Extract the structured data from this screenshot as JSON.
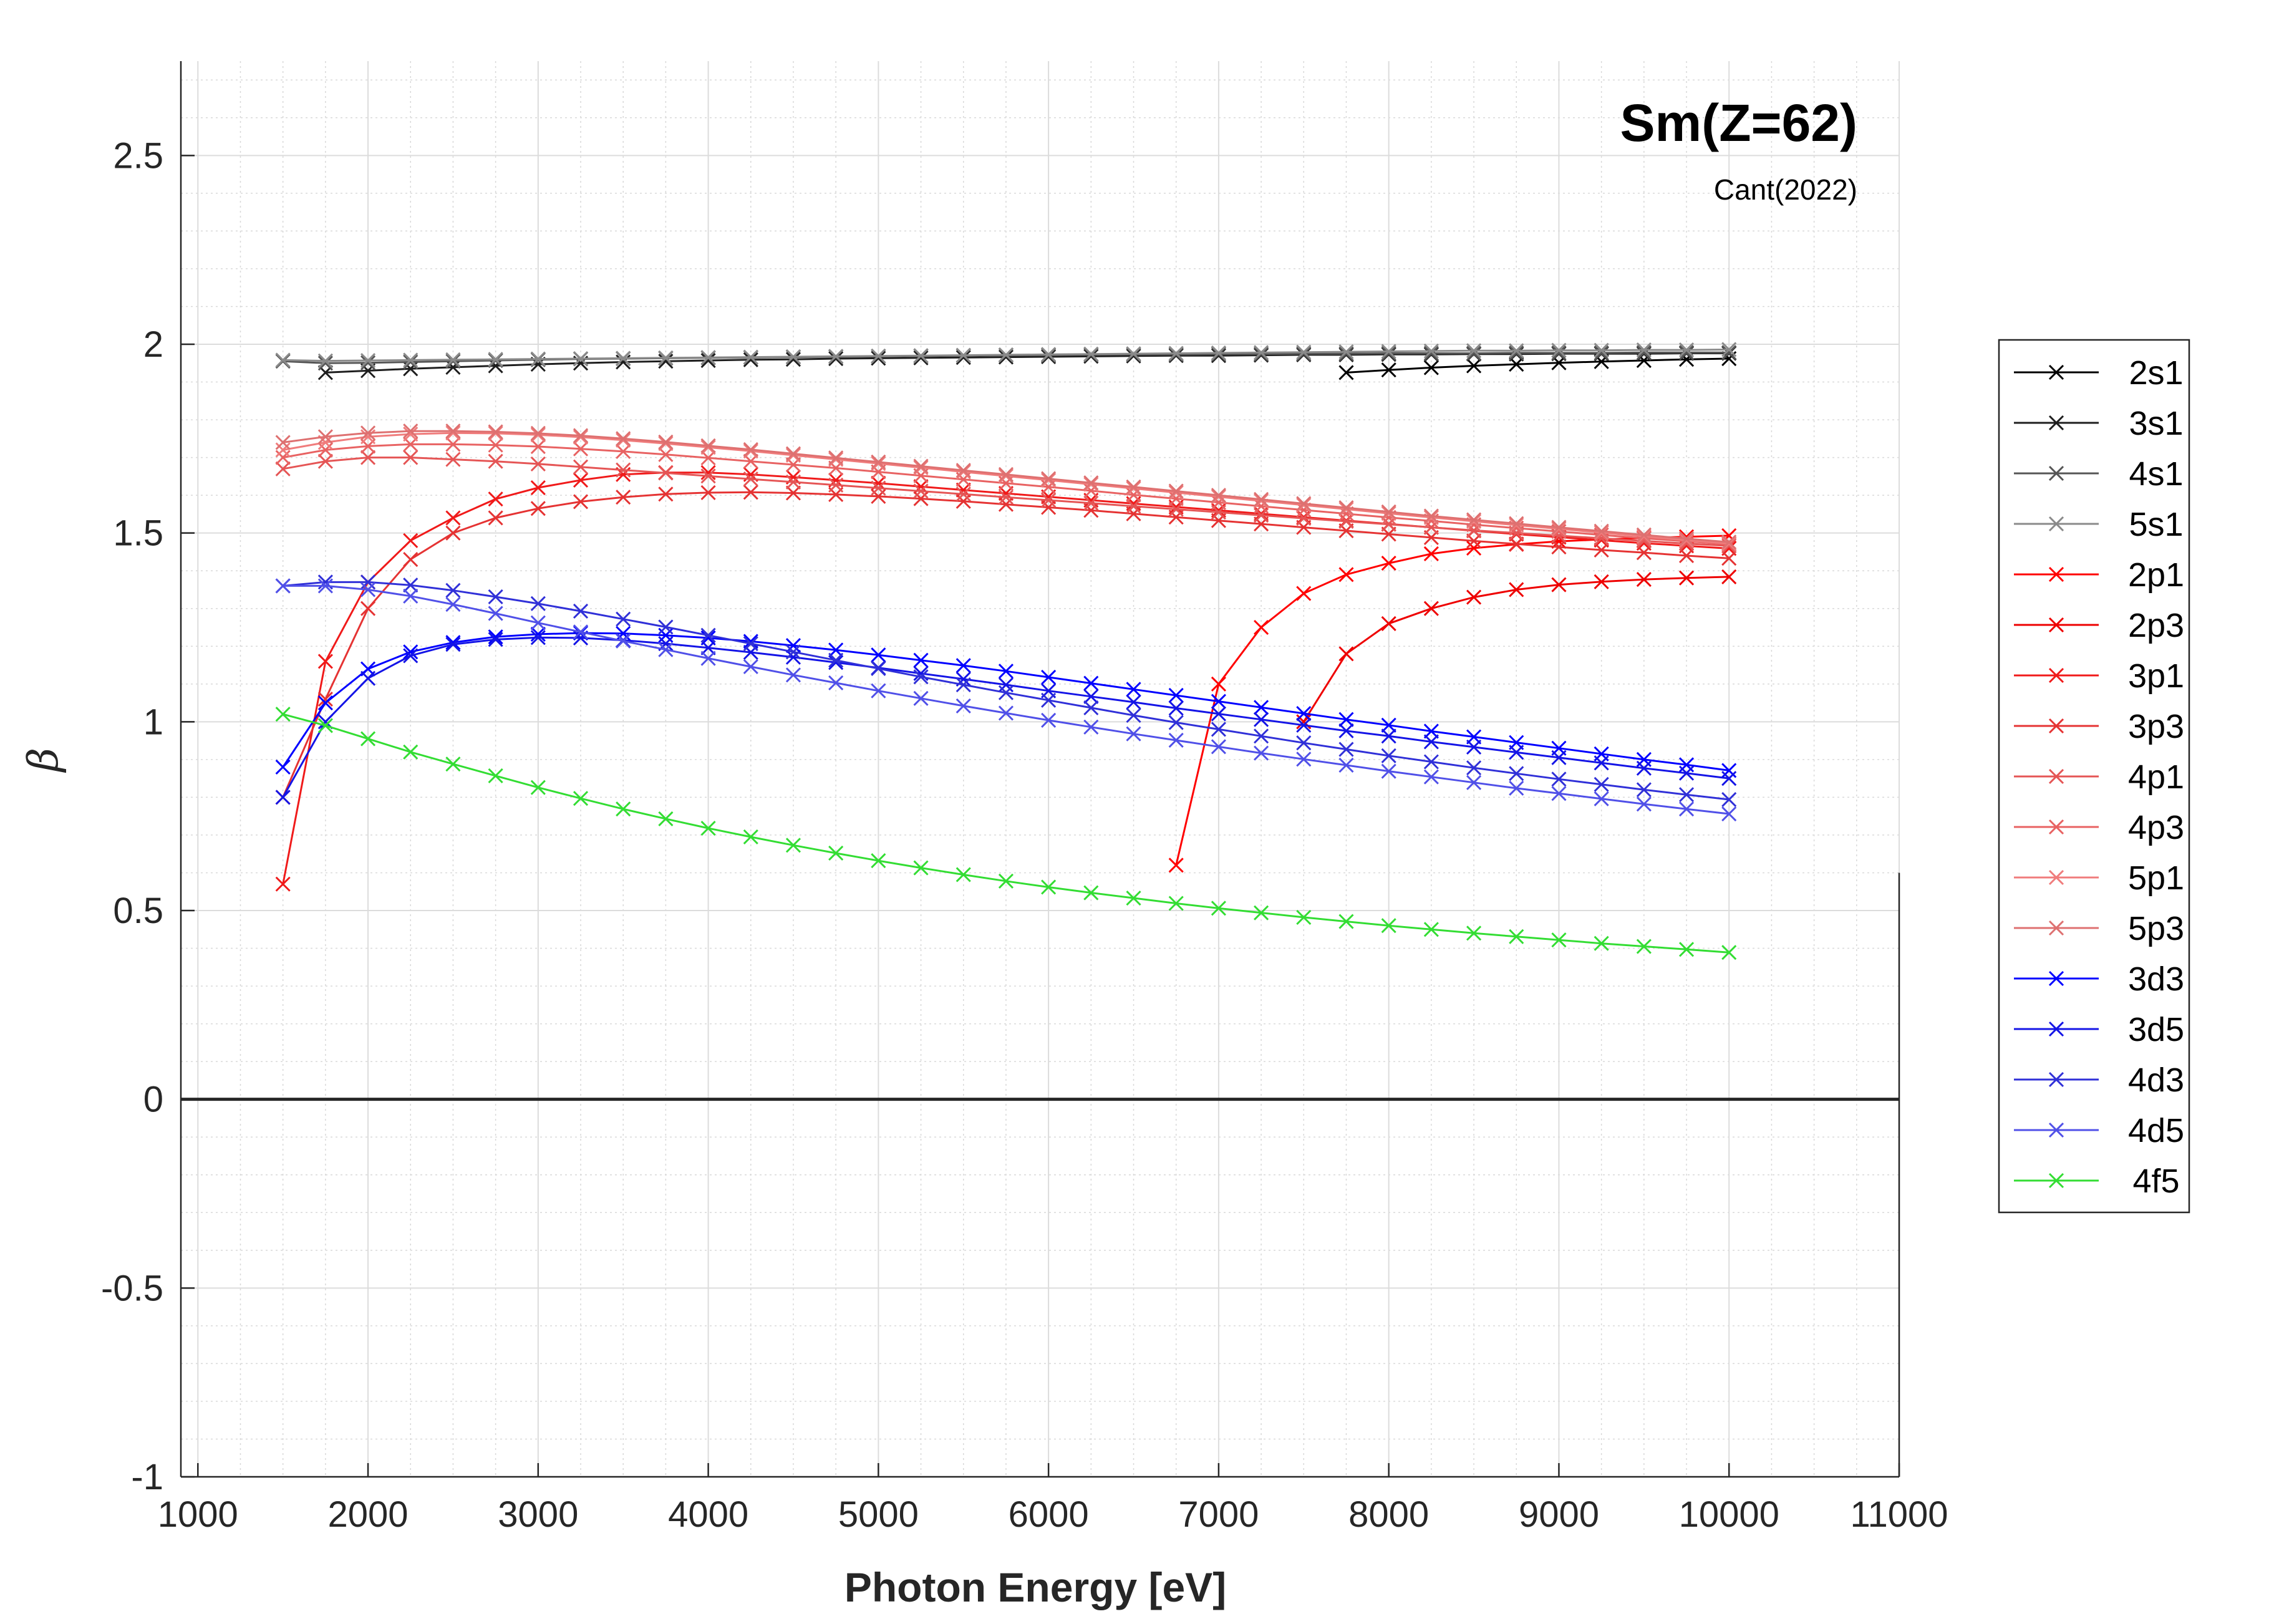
{
  "chart_data": {
    "type": "line",
    "title": "Sm(Z=62)",
    "subtitle": "Cant(2022)",
    "xlabel": "Photon Energy [eV]",
    "ylabel": "β",
    "xlim": [
      900,
      11000
    ],
    "ylim": [
      -1,
      2.75
    ],
    "xticks": [
      "1000",
      "2000",
      "3000",
      "4000",
      "5000",
      "6000",
      "7000",
      "8000",
      "9000",
      "10000",
      "11000"
    ],
    "yticks": [
      "-1",
      "-0.5",
      "0",
      "0.5",
      "1",
      "1.5",
      "2",
      "2.5"
    ],
    "grid": true,
    "minor_grid": true,
    "legend_position": "right",
    "zero_line": true,
    "series": [
      {
        "name": "2s1",
        "color": "#000000",
        "x": [
          7750,
          8000,
          8250,
          8500,
          8750,
          9000,
          9250,
          9500,
          9750,
          10000
        ],
        "y": [
          1.925,
          1.932,
          1.938,
          1.943,
          1.947,
          1.951,
          1.954,
          1.957,
          1.96,
          1.962
        ]
      },
      {
        "name": "3s1",
        "color": "#1e1e1e",
        "x": [
          1750,
          2000,
          2250,
          2500,
          2750,
          3000,
          3250,
          3500,
          3750,
          4000,
          4250,
          4500,
          4750,
          5000,
          5250,
          5500,
          5750,
          6000,
          6250,
          6500,
          6750,
          7000,
          7250,
          7500,
          7750,
          8000,
          8250,
          8500,
          8750,
          9000,
          9250,
          9500,
          9750,
          10000
        ],
        "y": [
          1.925,
          1.93,
          1.935,
          1.939,
          1.943,
          1.947,
          1.95,
          1.953,
          1.955,
          1.957,
          1.959,
          1.96,
          1.962,
          1.963,
          1.964,
          1.965,
          1.966,
          1.967,
          1.968,
          1.969,
          1.97,
          1.97,
          1.971,
          1.972,
          1.972,
          1.973,
          1.973,
          1.974,
          1.974,
          1.975,
          1.975,
          1.975,
          1.976,
          1.976
        ]
      },
      {
        "name": "4s1",
        "color": "#555555",
        "x": [
          1500,
          1750,
          2000,
          2250,
          2500,
          2750,
          3000,
          3250,
          3500,
          3750,
          4000,
          4250,
          4500,
          4750,
          5000,
          5250,
          5500,
          5750,
          6000,
          6250,
          6500,
          6750,
          7000,
          7250,
          7500,
          7750,
          8000,
          8250,
          8500,
          8750,
          9000,
          9250,
          9500,
          9750,
          10000
        ],
        "y": [
          1.955,
          1.95,
          1.951,
          1.953,
          1.955,
          1.957,
          1.959,
          1.961,
          1.962,
          1.963,
          1.964,
          1.965,
          1.966,
          1.967,
          1.968,
          1.969,
          1.97,
          1.971,
          1.971,
          1.972,
          1.973,
          1.973,
          1.974,
          1.974,
          1.975,
          1.975,
          1.976,
          1.976,
          1.976,
          1.977,
          1.977,
          1.977,
          1.978,
          1.978,
          1.978
        ]
      },
      {
        "name": "5s1",
        "color": "#8a8a8a",
        "x": [
          1500,
          1750,
          2000,
          2250,
          2500,
          2750,
          3000,
          3250,
          3500,
          3750,
          4000,
          4250,
          4500,
          4750,
          5000,
          5250,
          5500,
          5750,
          6000,
          6250,
          6500,
          6750,
          7000,
          7250,
          7500,
          7750,
          8000,
          8250,
          8500,
          8750,
          9000,
          9250,
          9500,
          9750,
          10000
        ],
        "y": [
          1.958,
          1.956,
          1.957,
          1.958,
          1.959,
          1.96,
          1.961,
          1.962,
          1.963,
          1.964,
          1.965,
          1.966,
          1.967,
          1.968,
          1.969,
          1.97,
          1.971,
          1.972,
          1.973,
          1.974,
          1.975,
          1.976,
          1.977,
          1.978,
          1.979,
          1.98,
          1.981,
          1.982,
          1.983,
          1.983,
          1.984,
          1.984,
          1.985,
          1.985,
          1.986
        ]
      },
      {
        "name": "2p1",
        "color": "#ff0000",
        "x": [
          6750,
          7000,
          7250,
          7500,
          7750,
          8000,
          8250,
          8500,
          8750,
          9000,
          9250,
          9500,
          9750,
          10000
        ],
        "y": [
          0.62,
          1.1,
          1.25,
          1.34,
          1.39,
          1.42,
          1.445,
          1.46,
          1.47,
          1.478,
          1.483,
          1.487,
          1.49,
          1.493
        ]
      },
      {
        "name": "2p3",
        "color": "#ee0000",
        "x": [
          7500,
          7750,
          8000,
          8250,
          8500,
          8750,
          9000,
          9250,
          9500,
          9750,
          10000
        ],
        "y": [
          1.0,
          1.18,
          1.26,
          1.3,
          1.33,
          1.35,
          1.363,
          1.371,
          1.377,
          1.381,
          1.384
        ]
      },
      {
        "name": "3p1",
        "color": "#f01a1a",
        "x": [
          1500,
          1750,
          2000,
          2250,
          2500,
          2750,
          3000,
          3250,
          3500,
          3750,
          4000,
          4250,
          4500,
          4750,
          5000,
          5250,
          5500,
          5750,
          6000,
          6250,
          6500,
          6750,
          7000,
          7250,
          7500,
          7750,
          8000,
          8250,
          8500,
          8750,
          9000,
          9250,
          9500,
          9750,
          10000
        ],
        "y": [
          0.57,
          1.16,
          1.37,
          1.48,
          1.54,
          1.59,
          1.62,
          1.64,
          1.655,
          1.66,
          1.66,
          1.655,
          1.648,
          1.64,
          1.632,
          1.623,
          1.614,
          1.605,
          1.596,
          1.587,
          1.578,
          1.569,
          1.56,
          1.551,
          1.542,
          1.533,
          1.524,
          1.515,
          1.506,
          1.497,
          1.489,
          1.481,
          1.473,
          1.466,
          1.459
        ]
      },
      {
        "name": "3p3",
        "color": "#e53333",
        "x": [
          1500,
          1750,
          2000,
          2250,
          2500,
          2750,
          3000,
          3250,
          3500,
          3750,
          4000,
          4250,
          4500,
          4750,
          5000,
          5250,
          5500,
          5750,
          6000,
          6250,
          6500,
          6750,
          7000,
          7250,
          7500,
          7750,
          8000,
          8250,
          8500,
          8750,
          9000,
          9250,
          9500,
          9750,
          10000
        ],
        "y": [
          0.8,
          1.06,
          1.3,
          1.43,
          1.5,
          1.54,
          1.565,
          1.583,
          1.595,
          1.603,
          1.607,
          1.608,
          1.606,
          1.602,
          1.597,
          1.591,
          1.584,
          1.576,
          1.568,
          1.56,
          1.551,
          1.542,
          1.533,
          1.524,
          1.515,
          1.506,
          1.497,
          1.488,
          1.479,
          1.471,
          1.463,
          1.455,
          1.448,
          1.44,
          1.433
        ]
      },
      {
        "name": "4p1",
        "color": "#e55555",
        "x": [
          1500,
          1750,
          2000,
          2250,
          2500,
          2750,
          3000,
          3250,
          3500,
          3750,
          4000,
          4250,
          4500,
          4750,
          5000,
          5250,
          5500,
          5750,
          6000,
          6250,
          6500,
          6750,
          7000,
          7250,
          7500,
          7750,
          8000,
          8250,
          8500,
          8750,
          9000,
          9250,
          9500,
          9750,
          10000
        ],
        "y": [
          1.67,
          1.69,
          1.7,
          1.7,
          1.695,
          1.69,
          1.683,
          1.675,
          1.667,
          1.659,
          1.651,
          1.643,
          1.635,
          1.627,
          1.619,
          1.611,
          1.603,
          1.595,
          1.587,
          1.579,
          1.571,
          1.563,
          1.555,
          1.547,
          1.539,
          1.531,
          1.523,
          1.515,
          1.507,
          1.5,
          1.493,
          1.486,
          1.479,
          1.472,
          1.466
        ]
      },
      {
        "name": "4p3",
        "color": "#e86262",
        "x": [
          1500,
          1750,
          2000,
          2250,
          2500,
          2750,
          3000,
          3250,
          3500,
          3750,
          4000,
          4250,
          4500,
          4750,
          5000,
          5250,
          5500,
          5750,
          6000,
          6250,
          6500,
          6750,
          7000,
          7250,
          7500,
          7750,
          8000,
          8250,
          8500,
          8750,
          9000,
          9250,
          9500,
          9750,
          10000
        ],
        "y": [
          1.7,
          1.72,
          1.73,
          1.735,
          1.735,
          1.733,
          1.729,
          1.723,
          1.716,
          1.708,
          1.699,
          1.69,
          1.681,
          1.672,
          1.662,
          1.652,
          1.642,
          1.632,
          1.622,
          1.612,
          1.601,
          1.591,
          1.581,
          1.571,
          1.561,
          1.551,
          1.541,
          1.532,
          1.522,
          1.513,
          1.504,
          1.495,
          1.486,
          1.478,
          1.47
        ]
      },
      {
        "name": "5p1",
        "color": "#f07c7c",
        "x": [
          1500,
          1750,
          2000,
          2250,
          2500,
          2750,
          3000,
          3250,
          3500,
          3750,
          4000,
          4250,
          4500,
          4750,
          5000,
          5250,
          5500,
          5750,
          6000,
          6250,
          6500,
          6750,
          7000,
          7250,
          7500,
          7750,
          8000,
          8250,
          8500,
          8750,
          9000,
          9250,
          9500,
          9750,
          10000
        ],
        "y": [
          1.72,
          1.74,
          1.755,
          1.762,
          1.765,
          1.764,
          1.76,
          1.754,
          1.746,
          1.737,
          1.727,
          1.717,
          1.706,
          1.695,
          1.684,
          1.673,
          1.662,
          1.651,
          1.64,
          1.629,
          1.618,
          1.607,
          1.596,
          1.585,
          1.574,
          1.563,
          1.552,
          1.541,
          1.531,
          1.521,
          1.511,
          1.501,
          1.491,
          1.481,
          1.472
        ]
      },
      {
        "name": "5p3",
        "color": "#de7070",
        "x": [
          1500,
          1750,
          2000,
          2250,
          2500,
          2750,
          3000,
          3250,
          3500,
          3750,
          4000,
          4250,
          4500,
          4750,
          5000,
          5250,
          5500,
          5750,
          6000,
          6250,
          6500,
          6750,
          7000,
          7250,
          7500,
          7750,
          8000,
          8250,
          8500,
          8750,
          9000,
          9250,
          9500,
          9750,
          10000
        ],
        "y": [
          1.74,
          1.755,
          1.765,
          1.77,
          1.77,
          1.768,
          1.764,
          1.758,
          1.75,
          1.741,
          1.731,
          1.721,
          1.71,
          1.699,
          1.688,
          1.677,
          1.666,
          1.655,
          1.644,
          1.633,
          1.622,
          1.611,
          1.6,
          1.589,
          1.578,
          1.567,
          1.556,
          1.545,
          1.535,
          1.525,
          1.515,
          1.505,
          1.495,
          1.485,
          1.476
        ]
      },
      {
        "name": "3d3",
        "color": "#0000ff",
        "x": [
          1500,
          1750,
          2000,
          2250,
          2500,
          2750,
          3000,
          3250,
          3500,
          3750,
          4000,
          4250,
          4500,
          4750,
          5000,
          5250,
          5500,
          5750,
          6000,
          6250,
          6500,
          6750,
          7000,
          7250,
          7500,
          7750,
          8000,
          8250,
          8500,
          8750,
          9000,
          9250,
          9500,
          9750,
          10000
        ],
        "y": [
          0.88,
          1.05,
          1.14,
          1.185,
          1.21,
          1.225,
          1.232,
          1.235,
          1.234,
          1.229,
          1.222,
          1.213,
          1.202,
          1.19,
          1.177,
          1.163,
          1.149,
          1.134,
          1.118,
          1.102,
          1.086,
          1.07,
          1.054,
          1.038,
          1.022,
          1.006,
          0.991,
          0.975,
          0.96,
          0.945,
          0.93,
          0.915,
          0.9,
          0.886,
          0.871
        ]
      },
      {
        "name": "3d5",
        "color": "#1414e6",
        "x": [
          1500,
          1750,
          2000,
          2250,
          2500,
          2750,
          3000,
          3250,
          3500,
          3750,
          4000,
          4250,
          4500,
          4750,
          5000,
          5250,
          5500,
          5750,
          6000,
          6250,
          6500,
          6750,
          7000,
          7250,
          7500,
          7750,
          8000,
          8250,
          8500,
          8750,
          9000,
          9250,
          9500,
          9750,
          10000
        ],
        "y": [
          0.8,
          1.0,
          1.115,
          1.175,
          1.205,
          1.218,
          1.223,
          1.222,
          1.216,
          1.207,
          1.196,
          1.184,
          1.171,
          1.157,
          1.143,
          1.128,
          1.113,
          1.098,
          1.082,
          1.067,
          1.052,
          1.036,
          1.021,
          1.006,
          0.991,
          0.976,
          0.962,
          0.947,
          0.933,
          0.919,
          0.905,
          0.891,
          0.877,
          0.864,
          0.85
        ]
      },
      {
        "name": "4d3",
        "color": "#3030d8",
        "x": [
          1500,
          1750,
          2000,
          2250,
          2500,
          2750,
          3000,
          3250,
          3500,
          3750,
          4000,
          4250,
          4500,
          4750,
          5000,
          5250,
          5500,
          5750,
          6000,
          6250,
          6500,
          6750,
          7000,
          7250,
          7500,
          7750,
          8000,
          8250,
          8500,
          8750,
          9000,
          9250,
          9500,
          9750,
          10000
        ],
        "y": [
          1.36,
          1.37,
          1.37,
          1.362,
          1.348,
          1.331,
          1.313,
          1.293,
          1.272,
          1.251,
          1.229,
          1.207,
          1.185,
          1.163,
          1.141,
          1.119,
          1.098,
          1.077,
          1.057,
          1.037,
          1.017,
          0.998,
          0.98,
          0.962,
          0.944,
          0.927,
          0.91,
          0.894,
          0.878,
          0.863,
          0.848,
          0.834,
          0.82,
          0.807,
          0.794
        ]
      },
      {
        "name": "4d5",
        "color": "#5050e8",
        "x": [
          1500,
          1750,
          2000,
          2250,
          2500,
          2750,
          3000,
          3250,
          3500,
          3750,
          4000,
          4250,
          4500,
          4750,
          5000,
          5250,
          5500,
          5750,
          6000,
          6250,
          6500,
          6750,
          7000,
          7250,
          7500,
          7750,
          8000,
          8250,
          8500,
          8750,
          9000,
          9250,
          9500,
          9750,
          10000
        ],
        "y": [
          1.36,
          1.36,
          1.35,
          1.333,
          1.311,
          1.287,
          1.262,
          1.238,
          1.214,
          1.191,
          1.168,
          1.146,
          1.124,
          1.103,
          1.082,
          1.062,
          1.042,
          1.023,
          1.004,
          0.986,
          0.968,
          0.951,
          0.934,
          0.917,
          0.901,
          0.885,
          0.869,
          0.854,
          0.839,
          0.824,
          0.81,
          0.796,
          0.782,
          0.769,
          0.756
        ]
      },
      {
        "name": "4f5",
        "color": "#33dd33",
        "x": [
          1500,
          1750,
          2000,
          2250,
          2500,
          2750,
          3000,
          3250,
          3500,
          3750,
          4000,
          4250,
          4500,
          4750,
          5000,
          5250,
          5500,
          5750,
          6000,
          6250,
          6500,
          6750,
          7000,
          7250,
          7500,
          7750,
          8000,
          8250,
          8500,
          8750,
          9000,
          9250,
          9500,
          9750,
          10000
        ],
        "y": [
          1.02,
          0.99,
          0.955,
          0.92,
          0.888,
          0.857,
          0.826,
          0.797,
          0.769,
          0.743,
          0.718,
          0.695,
          0.673,
          0.652,
          0.632,
          0.613,
          0.595,
          0.578,
          0.562,
          0.547,
          0.533,
          0.519,
          0.506,
          0.494,
          0.482,
          0.471,
          0.46,
          0.45,
          0.44,
          0.431,
          0.422,
          0.413,
          0.405,
          0.397,
          0.389
        ]
      }
    ]
  }
}
